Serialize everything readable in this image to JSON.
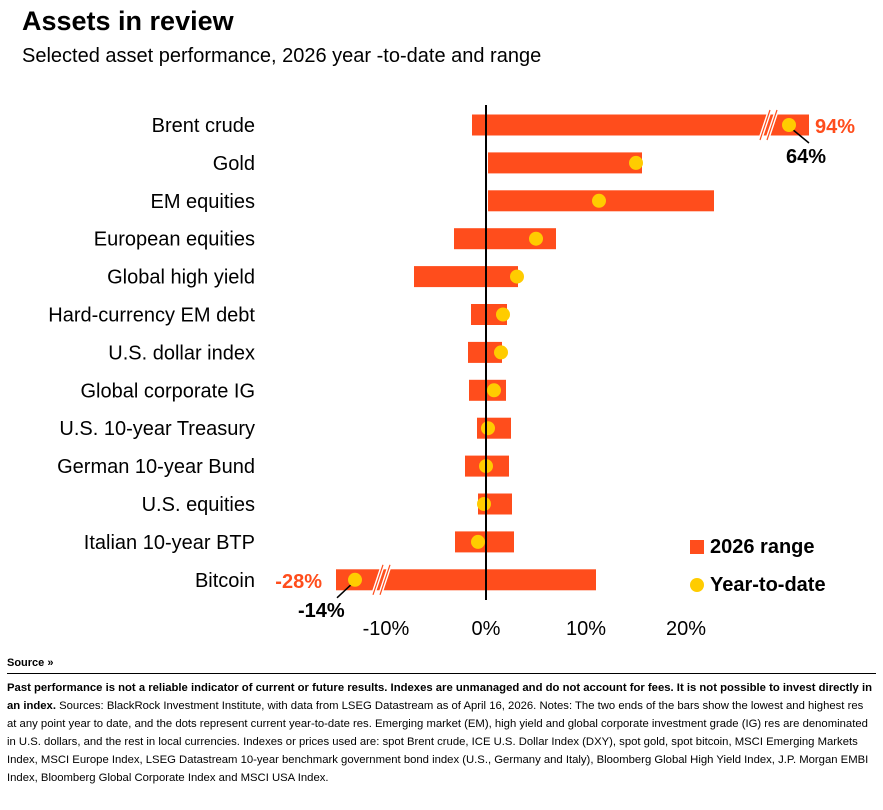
{
  "header": {
    "title": "Assets in review",
    "subtitle": "Selected asset performance, 2026 year   -to-date and range"
  },
  "chart_data": {
    "type": "bar",
    "orientation": "horizontal-range",
    "xlim": [
      -15,
      32
    ],
    "xticks": [
      -10,
      0,
      10,
      20
    ],
    "tick_labels": [
      "-10%",
      "0%",
      "10%",
      "20%"
    ],
    "colors": {
      "range": "#ff4d1c",
      "ytd": "#ffcc00",
      "callout_range": "#ff4d1c",
      "callout_ytd": "#000000"
    },
    "categories": [
      "Brent crude",
      "Gold",
      "EM equities",
      "European equities",
      "Global high yield",
      "Hard-currency EM debt",
      "U.S. dollar index",
      "Global corporate IG",
      "U.S. 10-year Treasury",
      "German 10-year Bund",
      "U.S. equities",
      "Italian 10-year BTP",
      "Bitcoin"
    ],
    "series": [
      {
        "name": "2026 range",
        "low": [
          -1.4,
          0.2,
          0.2,
          -3.2,
          -7.2,
          -1.5,
          -1.8,
          -1.7,
          -0.9,
          -2.1,
          -0.8,
          -3.1,
          -28
        ],
        "high": [
          94,
          15.6,
          22.8,
          7.0,
          3.2,
          2.1,
          1.6,
          2.0,
          2.5,
          2.3,
          2.6,
          2.8,
          11
        ]
      },
      {
        "name": "Year-to-date",
        "values": [
          64,
          15.0,
          11.3,
          5.0,
          3.1,
          1.7,
          1.5,
          0.8,
          0.2,
          0.0,
          -0.2,
          -0.8,
          -14
        ]
      }
    ],
    "breaks": [
      {
        "category": "Brent crude",
        "side": "high",
        "range_label": "94%",
        "ytd_label": "64%"
      },
      {
        "category": "Bitcoin",
        "side": "low",
        "range_label": "-28%",
        "ytd_label": "-14%"
      }
    ],
    "legend": {
      "position": "bottom-right",
      "entries": [
        "2026 range",
        "Year-to-date"
      ]
    }
  },
  "source": {
    "toggle_label": "Source »",
    "disclaimer": "Past performance is not a reliable indicator of current or future results. Indexes are unmanaged and do not account for fees. It is not possible to invest directly in an index.",
    "notes": " Sources: BlackRock Investment Institute, with data from LSEG Datastream as of April 16, 2026. Notes: The two ends of the bars show the lowest and highest res at any point year to date, and the dots represent current year-to-date res. Emerging market (EM), high yield and global corporate investment grade (IG) res are denominated in U.S. dollars, and the rest in local currencies. Indexes or prices used are: spot Brent crude, ICE U.S. Dollar Index (DXY), spot gold, spot bitcoin, MSCI Emerging Markets Index, MSCI Europe Index, LSEG Datastream 10-year benchmark government bond index (U.S., Germany and Italy), Bloomberg Global High Yield Index, J.P. Morgan EMBI Index, Bloomberg Global Corporate Index and MSCI USA Index."
  }
}
